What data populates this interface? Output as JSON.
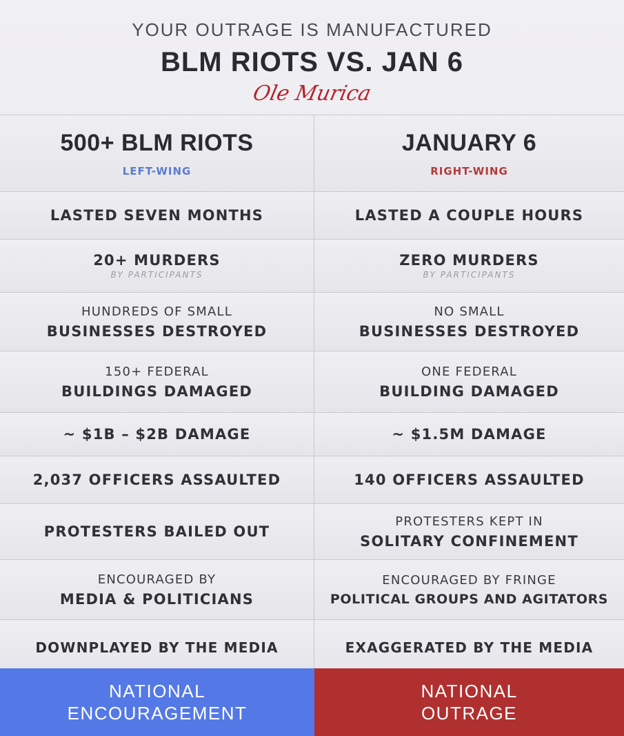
{
  "header": {
    "kicker": "YOUR OUTRAGE IS MANUFACTURED",
    "title": "BLM RIOTS VS. JAN 6",
    "signature": "Ole Murica"
  },
  "columns": {
    "left": {
      "title": "500+ BLM RIOTS",
      "tag": "LEFT-WING",
      "tag_color": "#5b7bd1"
    },
    "right": {
      "title": "JANUARY 6",
      "tag": "RIGHT-WING",
      "tag_color": "#b33a3a"
    }
  },
  "rows": [
    {
      "left": {
        "l1": "LASTED SEVEN MONTHS"
      },
      "right": {
        "l1": "LASTED A COUPLE HOURS"
      }
    },
    {
      "left": {
        "l1": "20+ MURDERS",
        "sub": "BY PARTICIPANTS"
      },
      "right": {
        "l1": "ZERO MURDERS",
        "sub": "BY PARTICIPANTS"
      }
    },
    {
      "left": {
        "l0": "HUNDREDS OF SMALL",
        "l1": "BUSINESSES DESTROYED"
      },
      "right": {
        "l0": "NO SMALL",
        "l1": "BUSINESSES DESTROYED"
      }
    },
    {
      "left": {
        "l0": "150+ FEDERAL",
        "l1": "BUILDINGS DAMAGED"
      },
      "right": {
        "l0": "ONE FEDERAL",
        "l1": "BUILDING DAMAGED"
      }
    },
    {
      "left": {
        "l1": "~ $1B – $2B DAMAGE"
      },
      "right": {
        "l1": "~ $1.5M DAMAGE"
      }
    },
    {
      "left": {
        "l1": "2,037 OFFICERS ASSAULTED"
      },
      "right": {
        "l1": "140 OFFICERS ASSAULTED"
      }
    },
    {
      "left": {
        "l1": "PROTESTERS BAILED OUT"
      },
      "right": {
        "l0": "PROTESTERS KEPT IN",
        "l1": "SOLITARY CONFINEMENT"
      }
    },
    {
      "left": {
        "l0": "ENCOURAGED BY",
        "l1": "MEDIA & POLITICIANS"
      },
      "right": {
        "l0": "ENCOURAGED BY FRINGE",
        "l1": "POLITICAL GROUPS AND AGITATORS"
      }
    },
    {
      "left": {
        "l1": "DOWNPLAYED BY THE MEDIA"
      },
      "right": {
        "l1": "EXAGGERATED BY THE MEDIA"
      }
    }
  ],
  "footer": {
    "left": {
      "l1": "NATIONAL",
      "l2": "ENCOURAGEMENT",
      "color": "#5479e6"
    },
    "right": {
      "l1": "NATIONAL",
      "l2": "OUTRAGE",
      "color": "#b0302f"
    }
  }
}
